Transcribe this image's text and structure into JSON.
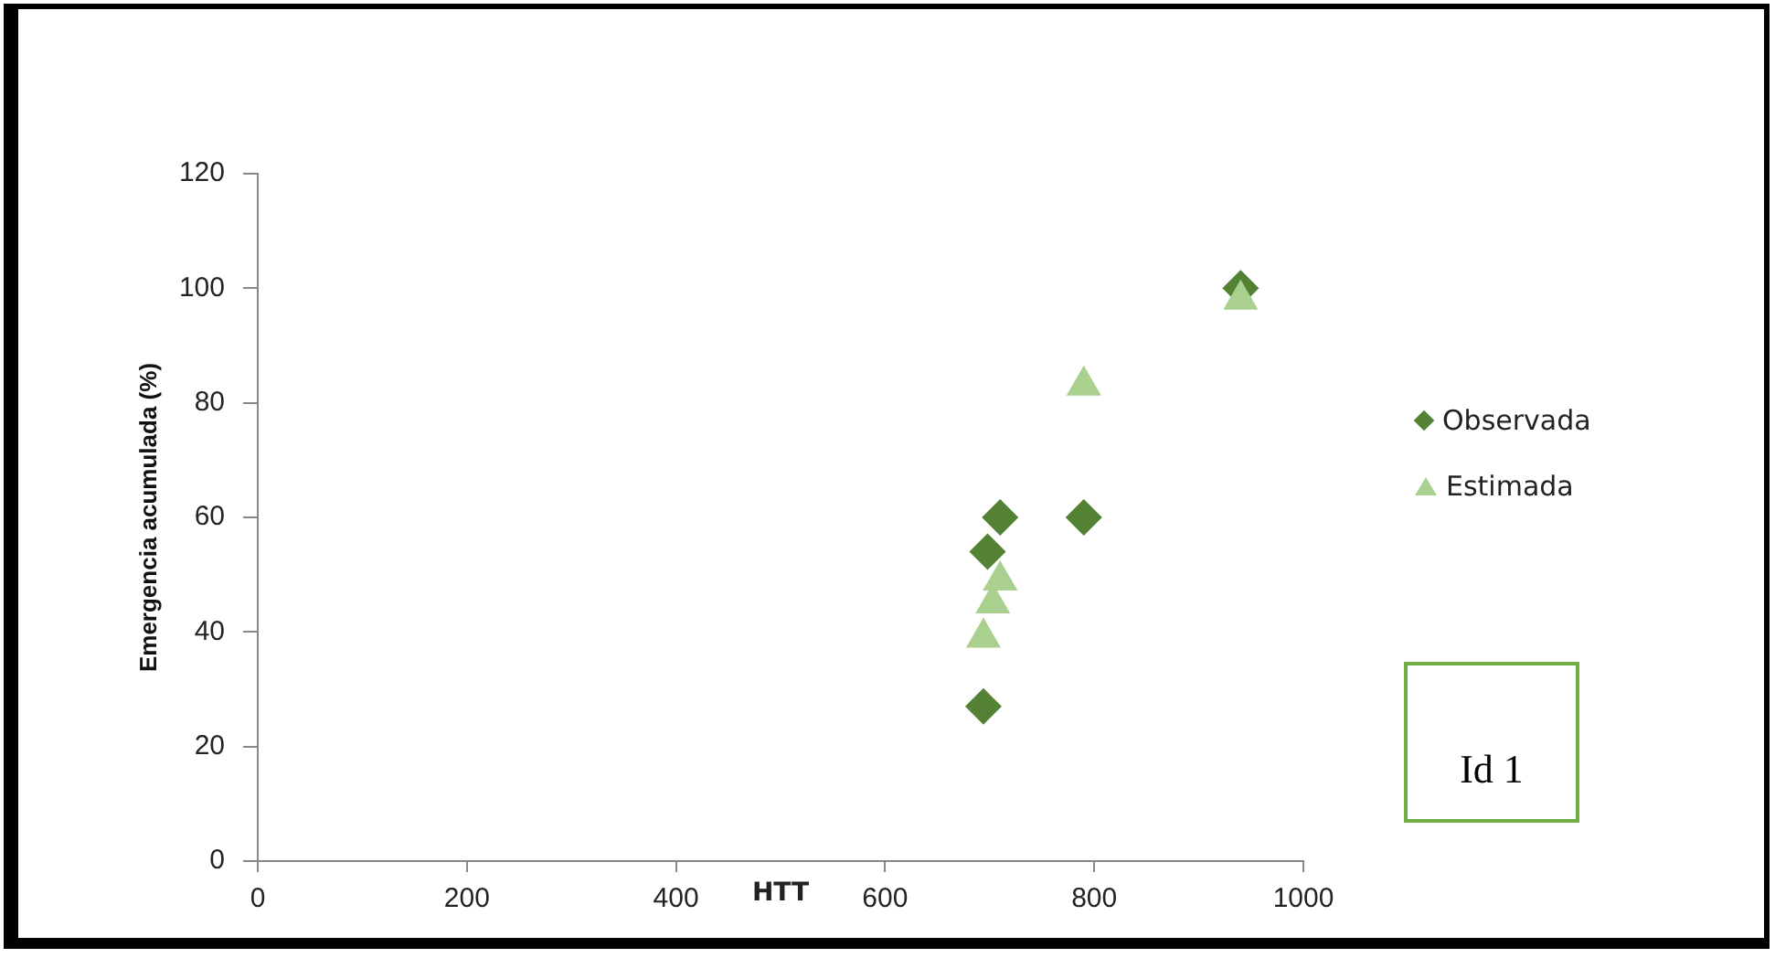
{
  "chart_data": {
    "type": "scatter",
    "ylabel": "Emergencia acumulada (%)",
    "xlabel": "HTT",
    "xlim": [
      0,
      1000
    ],
    "xticks": [
      0,
      200,
      400,
      600,
      800,
      1000
    ],
    "ylim": [
      0,
      120
    ],
    "yticks": [
      0,
      20,
      40,
      60,
      80,
      100,
      120
    ],
    "grid": false,
    "legend": "right",
    "series": [
      {
        "name": "Observada",
        "color": "#548235",
        "marker": "diamond",
        "x": [
          940,
          710,
          790,
          698,
          694
        ],
        "values": [
          100,
          60,
          60,
          54,
          27
        ]
      },
      {
        "name": "Estimada",
        "color": "#a9d08e",
        "marker": "triangle",
        "x": [
          940,
          790,
          710,
          703,
          694
        ],
        "values": [
          98,
          83,
          49,
          45,
          39
        ]
      }
    ],
    "annotations": [
      "Id 1"
    ]
  }
}
